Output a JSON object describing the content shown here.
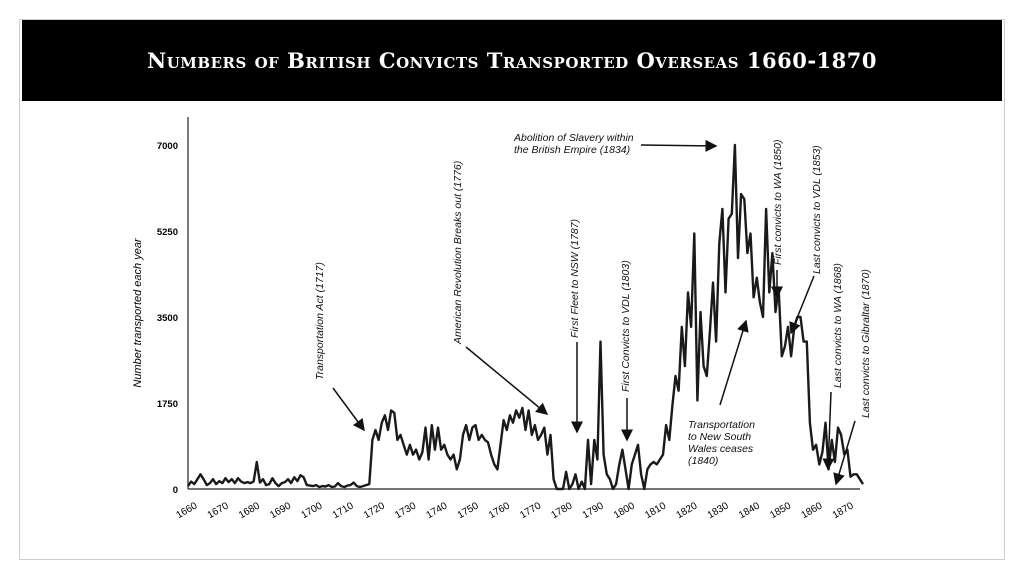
{
  "slide": {
    "title": "Numbers of British Convicts Transported Overseas 1660-1870"
  },
  "chart_data": {
    "type": "line",
    "title": "",
    "xlabel": "",
    "ylabel": "Number transported each year",
    "xlim": [
      1659,
      1875
    ],
    "ylim": [
      0,
      7000
    ],
    "x_ticks": [
      "1660",
      "1670",
      "1680",
      "1690",
      "1700",
      "1710",
      "1720",
      "1730",
      "1740",
      "1750",
      "1760",
      "1770",
      "1780",
      "1790",
      "1800",
      "1810",
      "1820",
      "1830",
      "1840",
      "1850",
      "1860",
      "1870"
    ],
    "y_ticks": [
      "0",
      "1750",
      "3500",
      "5250",
      "7000"
    ],
    "grid": false,
    "series": [
      {
        "name": "",
        "color": "#1a1a1a",
        "points": [
          [
            1659,
            60
          ],
          [
            1660,
            150
          ],
          [
            1661,
            100
          ],
          [
            1662,
            200
          ],
          [
            1663,
            300
          ],
          [
            1664,
            200
          ],
          [
            1665,
            80
          ],
          [
            1666,
            120
          ],
          [
            1667,
            200
          ],
          [
            1668,
            100
          ],
          [
            1669,
            160
          ],
          [
            1670,
            120
          ],
          [
            1671,
            220
          ],
          [
            1672,
            140
          ],
          [
            1673,
            200
          ],
          [
            1674,
            120
          ],
          [
            1675,
            220
          ],
          [
            1676,
            150
          ],
          [
            1677,
            120
          ],
          [
            1678,
            140
          ],
          [
            1679,
            120
          ],
          [
            1680,
            150
          ],
          [
            1681,
            550
          ],
          [
            1682,
            130
          ],
          [
            1683,
            200
          ],
          [
            1684,
            80
          ],
          [
            1685,
            100
          ],
          [
            1686,
            220
          ],
          [
            1687,
            120
          ],
          [
            1688,
            60
          ],
          [
            1689,
            120
          ],
          [
            1690,
            140
          ],
          [
            1691,
            200
          ],
          [
            1692,
            120
          ],
          [
            1693,
            240
          ],
          [
            1694,
            160
          ],
          [
            1695,
            280
          ],
          [
            1696,
            240
          ],
          [
            1697,
            80
          ],
          [
            1698,
            70
          ],
          [
            1699,
            60
          ],
          [
            1700,
            80
          ],
          [
            1701,
            40
          ],
          [
            1702,
            60
          ],
          [
            1703,
            50
          ],
          [
            1704,
            80
          ],
          [
            1705,
            40
          ],
          [
            1706,
            50
          ],
          [
            1707,
            120
          ],
          [
            1708,
            60
          ],
          [
            1709,
            40
          ],
          [
            1710,
            70
          ],
          [
            1711,
            80
          ],
          [
            1712,
            130
          ],
          [
            1713,
            60
          ],
          [
            1714,
            40
          ],
          [
            1715,
            60
          ],
          [
            1716,
            80
          ],
          [
            1717,
            100
          ],
          [
            1718,
            1000
          ],
          [
            1719,
            1200
          ],
          [
            1720,
            1000
          ],
          [
            1721,
            1350
          ],
          [
            1722,
            1500
          ],
          [
            1723,
            1200
          ],
          [
            1724,
            1600
          ],
          [
            1725,
            1550
          ],
          [
            1726,
            1000
          ],
          [
            1727,
            1100
          ],
          [
            1728,
            900
          ],
          [
            1729,
            700
          ],
          [
            1730,
            900
          ],
          [
            1731,
            700
          ],
          [
            1732,
            800
          ],
          [
            1733,
            600
          ],
          [
            1734,
            750
          ],
          [
            1735,
            1250
          ],
          [
            1736,
            600
          ],
          [
            1737,
            1300
          ],
          [
            1738,
            800
          ],
          [
            1739,
            1250
          ],
          [
            1740,
            800
          ],
          [
            1741,
            900
          ],
          [
            1742,
            700
          ],
          [
            1743,
            600
          ],
          [
            1744,
            700
          ],
          [
            1745,
            400
          ],
          [
            1746,
            600
          ],
          [
            1747,
            1100
          ],
          [
            1748,
            1300
          ],
          [
            1749,
            1000
          ],
          [
            1750,
            1250
          ],
          [
            1751,
            1300
          ],
          [
            1752,
            1000
          ],
          [
            1753,
            1100
          ],
          [
            1754,
            1000
          ],
          [
            1755,
            950
          ],
          [
            1756,
            700
          ],
          [
            1757,
            500
          ],
          [
            1758,
            400
          ],
          [
            1759,
            900
          ],
          [
            1760,
            1400
          ],
          [
            1761,
            1200
          ],
          [
            1762,
            1500
          ],
          [
            1763,
            1350
          ],
          [
            1764,
            1600
          ],
          [
            1765,
            1450
          ],
          [
            1766,
            1650
          ],
          [
            1767,
            1200
          ],
          [
            1768,
            1600
          ],
          [
            1769,
            1100
          ],
          [
            1770,
            1300
          ],
          [
            1771,
            1000
          ],
          [
            1772,
            1100
          ],
          [
            1773,
            1250
          ],
          [
            1774,
            700
          ],
          [
            1775,
            1100
          ],
          [
            1776,
            200
          ],
          [
            1777,
            0
          ],
          [
            1778,
            0
          ],
          [
            1779,
            0
          ],
          [
            1780,
            350
          ],
          [
            1781,
            0
          ],
          [
            1782,
            100
          ],
          [
            1783,
            300
          ],
          [
            1784,
            0
          ],
          [
            1785,
            150
          ],
          [
            1786,
            0
          ],
          [
            1787,
            1000
          ],
          [
            1788,
            100
          ],
          [
            1789,
            1000
          ],
          [
            1790,
            600
          ],
          [
            1791,
            3000
          ],
          [
            1792,
            700
          ],
          [
            1793,
            300
          ],
          [
            1794,
            200
          ],
          [
            1795,
            0
          ],
          [
            1796,
            100
          ],
          [
            1797,
            500
          ],
          [
            1798,
            800
          ],
          [
            1799,
            400
          ],
          [
            1800,
            0
          ],
          [
            1801,
            500
          ],
          [
            1802,
            700
          ],
          [
            1803,
            900
          ],
          [
            1804,
            300
          ],
          [
            1805,
            0
          ],
          [
            1806,
            400
          ],
          [
            1807,
            500
          ],
          [
            1808,
            550
          ],
          [
            1809,
            500
          ],
          [
            1810,
            600
          ],
          [
            1811,
            700
          ],
          [
            1812,
            1300
          ],
          [
            1813,
            1000
          ],
          [
            1814,
            1700
          ],
          [
            1815,
            2300
          ],
          [
            1816,
            2000
          ],
          [
            1817,
            3300
          ],
          [
            1818,
            2500
          ],
          [
            1819,
            4000
          ],
          [
            1820,
            3300
          ],
          [
            1821,
            5200
          ],
          [
            1822,
            1800
          ],
          [
            1823,
            3600
          ],
          [
            1824,
            2500
          ],
          [
            1825,
            2300
          ],
          [
            1826,
            3200
          ],
          [
            1827,
            4200
          ],
          [
            1828,
            3000
          ],
          [
            1829,
            5000
          ],
          [
            1830,
            5700
          ],
          [
            1831,
            4000
          ],
          [
            1832,
            5500
          ],
          [
            1833,
            5600
          ],
          [
            1834,
            7000
          ],
          [
            1835,
            4700
          ],
          [
            1836,
            6000
          ],
          [
            1837,
            5900
          ],
          [
            1838,
            4800
          ],
          [
            1839,
            5200
          ],
          [
            1840,
            3900
          ],
          [
            1841,
            4300
          ],
          [
            1842,
            3800
          ],
          [
            1843,
            3500
          ],
          [
            1844,
            5700
          ],
          [
            1845,
            4000
          ],
          [
            1846,
            4800
          ],
          [
            1847,
            3600
          ],
          [
            1848,
            4100
          ],
          [
            1849,
            2700
          ],
          [
            1850,
            2900
          ],
          [
            1851,
            3300
          ],
          [
            1852,
            2700
          ],
          [
            1853,
            3300
          ],
          [
            1854,
            3500
          ],
          [
            1855,
            3500
          ],
          [
            1856,
            3000
          ],
          [
            1857,
            3000
          ],
          [
            1858,
            1350
          ],
          [
            1859,
            800
          ],
          [
            1860,
            900
          ],
          [
            1861,
            500
          ],
          [
            1862,
            750
          ],
          [
            1863,
            1350
          ],
          [
            1864,
            400
          ],
          [
            1865,
            1000
          ],
          [
            1866,
            550
          ],
          [
            1867,
            1250
          ],
          [
            1868,
            1100
          ],
          [
            1869,
            700
          ],
          [
            1870,
            800
          ],
          [
            1871,
            250
          ],
          [
            1872,
            300
          ],
          [
            1873,
            300
          ],
          [
            1874,
            200
          ],
          [
            1875,
            100
          ]
        ]
      }
    ],
    "annotations": [
      {
        "text": "Transportation Act (1717)",
        "rotate": true,
        "x": 1717,
        "y": 1200
      },
      {
        "text": "American Revolution Breaks out (1776)",
        "rotate": true,
        "x": 1776,
        "y": 1000
      },
      {
        "text": "First Fleet to NSW (1787)",
        "rotate": true,
        "x": 1787,
        "y": 1000
      },
      {
        "text": "First Convicts to VDL (1803)",
        "rotate": true,
        "x": 1803,
        "y": 850
      },
      {
        "text": "Abolition of Slavery within the British Empire (1834)",
        "rotate": false,
        "x": 1834,
        "y": 7000
      },
      {
        "text": "Transportation to New South Wales ceases (1840)",
        "rotate": false,
        "x": 1840,
        "y": 3500
      },
      {
        "text": "First convicts to WA (1850)",
        "rotate": true,
        "x": 1850,
        "y": 3500
      },
      {
        "text": "Last convicts to VDL (1853)",
        "rotate": true,
        "x": 1853,
        "y": 3000
      },
      {
        "text": "Last convicts to WA (1868)",
        "rotate": true,
        "x": 1868,
        "y": 700
      },
      {
        "text": "Last convicts to Gibraltar (1870)",
        "rotate": true,
        "x": 1870,
        "y": 50
      }
    ]
  }
}
